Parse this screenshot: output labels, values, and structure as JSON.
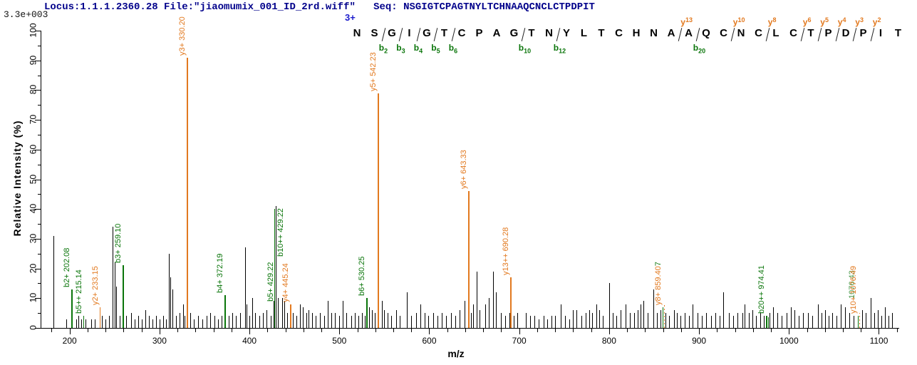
{
  "header": {
    "locus_file": "Locus:1.1.1.2360.28 File:\"jiaomumix_001_ID_2rd.wiff\"   Seq: NSGIGTCPAGTNYLTCHNAAQCNCLCTPDPIT"
  },
  "axes": {
    "max_intensity": "3.3e+003",
    "ylabel": "Relative  Intensity (%)",
    "xlabel": "m/z"
  },
  "colors": {
    "header_navy": "#00008B",
    "charge_blue": "#1a1acc",
    "b_ion_green": "#0a750a",
    "y_ion_orange": "#E2791F",
    "peak_black": "#000000"
  },
  "sequence": {
    "charge": "3+",
    "peptide": "NSGIGTCPAGTNYLTCHNAAQCNCLCTPDPIT",
    "residues": [
      {
        "aa": "N"
      },
      {
        "aa": "S",
        "b": "b2"
      },
      {
        "aa": "G",
        "b": "b3"
      },
      {
        "aa": "I",
        "b": "b4"
      },
      {
        "aa": "G",
        "b": "b5"
      },
      {
        "aa": "T",
        "b": "b6"
      },
      {
        "aa": "C"
      },
      {
        "aa": "P"
      },
      {
        "aa": "A"
      },
      {
        "aa": "G",
        "b": "b10"
      },
      {
        "aa": "T"
      },
      {
        "aa": "N",
        "b": "b12"
      },
      {
        "aa": "Y"
      },
      {
        "aa": "L"
      },
      {
        "aa": "T"
      },
      {
        "aa": "C"
      },
      {
        "aa": "H"
      },
      {
        "aa": "N"
      },
      {
        "aa": "A"
      },
      {
        "aa": "A",
        "y": "y13",
        "b": "b20"
      },
      {
        "aa": "Q"
      },
      {
        "aa": "C"
      },
      {
        "aa": "N",
        "y": "y10"
      },
      {
        "aa": "C"
      },
      {
        "aa": "L",
        "y": "y8"
      },
      {
        "aa": "C"
      },
      {
        "aa": "T",
        "y": "y6"
      },
      {
        "aa": "P",
        "y": "y5"
      },
      {
        "aa": "D",
        "y": "y4"
      },
      {
        "aa": "P",
        "y": "y3"
      },
      {
        "aa": "I",
        "y": "y2"
      },
      {
        "aa": "T"
      }
    ]
  },
  "chart_data": {
    "type": "bar",
    "subtype": "ms2_fragment_spectrum",
    "title": "",
    "xlabel": "m/z",
    "ylabel": "Relative Intensity (%)",
    "xlim": [
      168,
      1122
    ],
    "ylim": [
      0,
      100
    ],
    "max_intensity_counts": "3.3e+003",
    "precursor_charge": "3+",
    "xticks": [
      200,
      300,
      400,
      500,
      600,
      700,
      800,
      900,
      1000,
      1100
    ],
    "yticks": [
      0,
      10,
      20,
      30,
      40,
      50,
      60,
      70,
      80,
      90,
      100
    ],
    "labeled_peaks": [
      {
        "ion": "b2+",
        "mz": 202.08,
        "label": "b2+ 202.08",
        "series": "b",
        "height": 13
      },
      {
        "ion": "b5++",
        "mz": 215.14,
        "label": "b5++ 215.14",
        "series": "b",
        "height": 4
      },
      {
        "ion": "y2+",
        "mz": 233.15,
        "label": "y2+ 233.15",
        "series": "y",
        "height": 7
      },
      {
        "ion": "b3+",
        "mz": 259.1,
        "label": "b3+ 259.10",
        "series": "b",
        "height": 21
      },
      {
        "ion": "y3+",
        "mz": 330.2,
        "label": "y3+ 330.20",
        "series": "y",
        "height": 91
      },
      {
        "ion": "b4+",
        "mz": 372.19,
        "label": "b4+ 372.19",
        "series": "b",
        "height": 11
      },
      {
        "ion": "b5+ / b10++",
        "mz": 429.22,
        "label": "b5+ 429.22",
        "label2": "b10++ 429.22",
        "series": "b",
        "height": 41,
        "black_line": true
      },
      {
        "ion": "y4+",
        "mz": 445.24,
        "label": "y4+ 445.24",
        "series": "y",
        "height": 8
      },
      {
        "ion": "b6+",
        "mz": 530.25,
        "label": "b6+ 530.25",
        "series": "b",
        "height": 10
      },
      {
        "ion": "y5+",
        "mz": 542.23,
        "label": "y5+ 542.23",
        "series": "y",
        "height": 79
      },
      {
        "ion": "y6+",
        "mz": 643.33,
        "label": "y6+ 643.33",
        "series": "y",
        "height": 46
      },
      {
        "ion": "y13++",
        "mz": 690.28,
        "label": "y13++ 690.28",
        "series": "y",
        "height": 17
      },
      {
        "ion": "y8+",
        "mz": 859.4,
        "label": "y8+ 859.40",
        "label_suffix_green": "7",
        "series": "y",
        "height": 7,
        "green_line": true,
        "dash_height": 8
      },
      {
        "ion": "b20++",
        "mz": 974.41,
        "label": "b20++ 974.41",
        "series": "b",
        "height": 4,
        "double_line": true
      },
      {
        "ion": "y10+",
        "mz": 1076.49,
        "label": "y10+ 1076.49",
        "series": "y",
        "height": 4,
        "green_line": true,
        "dash_height": 5,
        "hidden_green_label": "1076.43"
      }
    ],
    "noise_peaks": [
      [
        182,
        31
      ],
      [
        196,
        3
      ],
      [
        203,
        4
      ],
      [
        207,
        3
      ],
      [
        210,
        4
      ],
      [
        213,
        3
      ],
      [
        218,
        3
      ],
      [
        224,
        3
      ],
      [
        228,
        3
      ],
      [
        236,
        4
      ],
      [
        240,
        3
      ],
      [
        244,
        4
      ],
      [
        248,
        34
      ],
      [
        250,
        22
      ],
      [
        252,
        14
      ],
      [
        256,
        4
      ],
      [
        263,
        4
      ],
      [
        268,
        5
      ],
      [
        272,
        3
      ],
      [
        276,
        4
      ],
      [
        280,
        3
      ],
      [
        284,
        6
      ],
      [
        288,
        4
      ],
      [
        292,
        3
      ],
      [
        296,
        4
      ],
      [
        300,
        3
      ],
      [
        304,
        4
      ],
      [
        307,
        3
      ],
      [
        310,
        25
      ],
      [
        312,
        17
      ],
      [
        314,
        13
      ],
      [
        318,
        4
      ],
      [
        322,
        5
      ],
      [
        326,
        8
      ],
      [
        328,
        4
      ],
      [
        334,
        5
      ],
      [
        338,
        3
      ],
      [
        343,
        4
      ],
      [
        348,
        3
      ],
      [
        352,
        4
      ],
      [
        356,
        5
      ],
      [
        361,
        4
      ],
      [
        365,
        3
      ],
      [
        369,
        4
      ],
      [
        377,
        4
      ],
      [
        381,
        5
      ],
      [
        385,
        4
      ],
      [
        390,
        5
      ],
      [
        395,
        27
      ],
      [
        397,
        8
      ],
      [
        400,
        4
      ],
      [
        403,
        10
      ],
      [
        406,
        5
      ],
      [
        411,
        4
      ],
      [
        415,
        5
      ],
      [
        419,
        6
      ],
      [
        424,
        4
      ],
      [
        427,
        9
      ],
      [
        432,
        10
      ],
      [
        436,
        10
      ],
      [
        439,
        9
      ],
      [
        442,
        5
      ],
      [
        448,
        5
      ],
      [
        452,
        4
      ],
      [
        456,
        8
      ],
      [
        459,
        7
      ],
      [
        463,
        5
      ],
      [
        466,
        6
      ],
      [
        470,
        5
      ],
      [
        474,
        4
      ],
      [
        478,
        5
      ],
      [
        483,
        4
      ],
      [
        487,
        9
      ],
      [
        491,
        5
      ],
      [
        495,
        5
      ],
      [
        500,
        4
      ],
      [
        504,
        9
      ],
      [
        508,
        5
      ],
      [
        513,
        4
      ],
      [
        517,
        5
      ],
      [
        521,
        4
      ],
      [
        525,
        5
      ],
      [
        528,
        4
      ],
      [
        533,
        7
      ],
      [
        536,
        6
      ],
      [
        539,
        5
      ],
      [
        547,
        9
      ],
      [
        550,
        6
      ],
      [
        554,
        5
      ],
      [
        558,
        4
      ],
      [
        563,
        6
      ],
      [
        567,
        4
      ],
      [
        575,
        12
      ],
      [
        580,
        4
      ],
      [
        585,
        5
      ],
      [
        590,
        8
      ],
      [
        595,
        5
      ],
      [
        599,
        4
      ],
      [
        604,
        5
      ],
      [
        609,
        4
      ],
      [
        614,
        5
      ],
      [
        619,
        4
      ],
      [
        624,
        5
      ],
      [
        629,
        4
      ],
      [
        634,
        6
      ],
      [
        639,
        9
      ],
      [
        646,
        5
      ],
      [
        649,
        8
      ],
      [
        653,
        19
      ],
      [
        656,
        6
      ],
      [
        662,
        8
      ],
      [
        666,
        10
      ],
      [
        671,
        19
      ],
      [
        674,
        12
      ],
      [
        680,
        5
      ],
      [
        684,
        4
      ],
      [
        689,
        5
      ],
      [
        694,
        4
      ],
      [
        698,
        5
      ],
      [
        707,
        5
      ],
      [
        712,
        4
      ],
      [
        717,
        4
      ],
      [
        722,
        3
      ],
      [
        727,
        4
      ],
      [
        731,
        3
      ],
      [
        736,
        4
      ],
      [
        740,
        4
      ],
      [
        746,
        8
      ],
      [
        751,
        4
      ],
      [
        756,
        3
      ],
      [
        760,
        6
      ],
      [
        764,
        6
      ],
      [
        769,
        4
      ],
      [
        774,
        5
      ],
      [
        778,
        6
      ],
      [
        781,
        5
      ],
      [
        786,
        8
      ],
      [
        789,
        6
      ],
      [
        793,
        4
      ],
      [
        800,
        15
      ],
      [
        804,
        5
      ],
      [
        808,
        4
      ],
      [
        813,
        6
      ],
      [
        818,
        8
      ],
      [
        823,
        5
      ],
      [
        828,
        5
      ],
      [
        832,
        6
      ],
      [
        835,
        8
      ],
      [
        838,
        9
      ],
      [
        843,
        5
      ],
      [
        849,
        13
      ],
      [
        853,
        5
      ],
      [
        857,
        6
      ],
      [
        863,
        5
      ],
      [
        867,
        4
      ],
      [
        872,
        6
      ],
      [
        875,
        5
      ],
      [
        879,
        4
      ],
      [
        884,
        5
      ],
      [
        889,
        4
      ],
      [
        893,
        8
      ],
      [
        898,
        5
      ],
      [
        903,
        4
      ],
      [
        908,
        5
      ],
      [
        913,
        4
      ],
      [
        918,
        5
      ],
      [
        923,
        4
      ],
      [
        927,
        12
      ],
      [
        933,
        5
      ],
      [
        938,
        4
      ],
      [
        943,
        5
      ],
      [
        948,
        5
      ],
      [
        951,
        8
      ],
      [
        955,
        5
      ],
      [
        959,
        6
      ],
      [
        963,
        4
      ],
      [
        968,
        5
      ],
      [
        972,
        4
      ],
      [
        978,
        5
      ],
      [
        982,
        7
      ],
      [
        987,
        5
      ],
      [
        992,
        4
      ],
      [
        997,
        5
      ],
      [
        1002,
        7
      ],
      [
        1006,
        6
      ],
      [
        1011,
        4
      ],
      [
        1016,
        5
      ],
      [
        1021,
        5
      ],
      [
        1026,
        4
      ],
      [
        1032,
        8
      ],
      [
        1036,
        5
      ],
      [
        1040,
        6
      ],
      [
        1044,
        4
      ],
      [
        1048,
        5
      ],
      [
        1053,
        4
      ],
      [
        1058,
        8
      ],
      [
        1062,
        7
      ],
      [
        1067,
        5
      ],
      [
        1072,
        4
      ],
      [
        1081,
        6
      ],
      [
        1085,
        5
      ],
      [
        1091,
        10
      ],
      [
        1095,
        5
      ],
      [
        1099,
        6
      ],
      [
        1103,
        4
      ],
      [
        1107,
        7
      ],
      [
        1111,
        4
      ],
      [
        1115,
        5
      ]
    ]
  }
}
